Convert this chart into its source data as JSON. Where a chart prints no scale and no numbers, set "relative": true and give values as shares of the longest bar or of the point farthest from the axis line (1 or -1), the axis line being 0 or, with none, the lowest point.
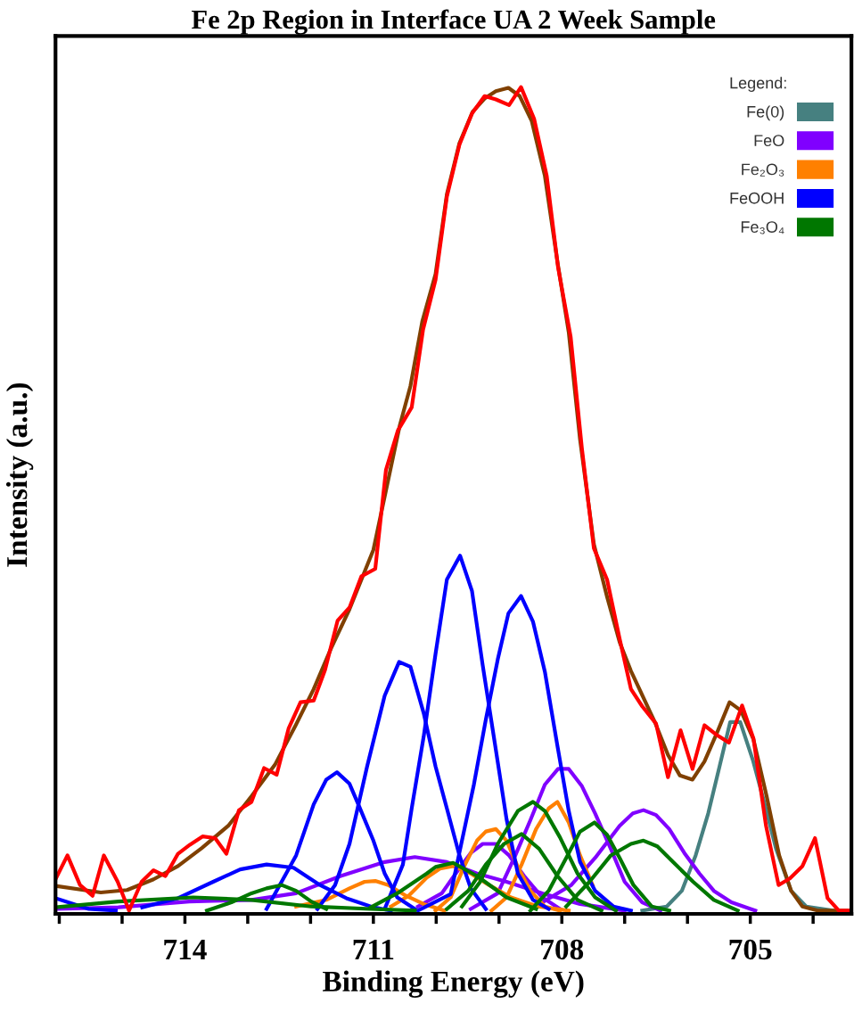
{
  "chart_data": {
    "type": "line",
    "title": "Fe 2p Region in Interface UA 2 Week Sample",
    "xlabel": "Binding Energy (eV)",
    "ylabel": "Intensity (a.u.)",
    "legend_title": "Legend:",
    "relative": true,
    "legend": "top right",
    "grid": false,
    "marker": "none",
    "line_style": "solid",
    "xlim": [
      716.06,
      703.39
    ],
    "xticks": [
      {
        "value": 716,
        "label": null
      },
      {
        "value": 715,
        "label": null
      },
      714,
      {
        "value": 713,
        "label": null
      },
      {
        "value": 712,
        "label": null
      },
      711,
      {
        "value": 710,
        "label": null
      },
      {
        "value": 709,
        "label": null
      },
      708,
      {
        "value": 707,
        "label": null
      },
      {
        "value": 706,
        "label": null
      },
      705,
      {
        "value": 704,
        "label": null
      }
    ],
    "series": [
      {
        "name": "Fe(0)",
        "color": "#468080",
        "x": [
          706.72,
          706.33,
          706.09,
          705.87,
          705.67,
          705.49,
          705.32,
          705.16,
          704.96,
          704.78,
          704.59,
          704.35,
          704.11,
          703.69
        ],
        "values": [
          0,
          0.005,
          0.024,
          0.067,
          0.118,
          0.175,
          0.229,
          0.229,
          0.183,
          0.132,
          0.075,
          0.024,
          0.005,
          0
        ]
      },
      {
        "name": "FeO",
        "color": "#8000ff",
        "x": [
          716.06,
          715.06,
          713.93,
          712.94,
          712.23,
          711.52,
          710.82,
          710.34,
          709.83,
          709.35,
          708.88,
          708.31,
          707.71,
          707.0
        ],
        "values": [
          0.002,
          0.004,
          0.011,
          0.013,
          0.021,
          0.042,
          0.059,
          0.065,
          0.059,
          0.045,
          0.035,
          0.021,
          0.008,
          0
        ]
      },
      {
        "color": "#8000ff",
        "x": [
          710.29,
          709.91,
          709.69,
          709.45,
          709.26,
          709.05,
          708.84,
          708.6,
          708.31,
          708.03
        ],
        "values": [
          0.005,
          0.021,
          0.045,
          0.07,
          0.081,
          0.081,
          0.067,
          0.042,
          0.016,
          0.002
        ]
      },
      {
        "color": "#8000ff",
        "x": [
          709.45,
          709.02,
          708.74,
          708.5,
          708.27,
          708.06,
          707.89,
          707.68,
          707.47,
          707.22,
          707.0,
          706.72,
          706.43
        ],
        "values": [
          0.002,
          0.021,
          0.067,
          0.11,
          0.153,
          0.172,
          0.172,
          0.151,
          0.118,
          0.075,
          0.035,
          0.01,
          0
        ]
      },
      {
        "color": "#8000ff",
        "x": [
          708.31,
          707.85,
          707.47,
          707.08,
          706.87,
          706.7,
          706.5,
          706.29,
          706.05,
          705.81,
          705.58,
          705.3,
          704.92
        ],
        "values": [
          0.01,
          0.031,
          0.064,
          0.103,
          0.118,
          0.122,
          0.116,
          0.099,
          0.07,
          0.045,
          0.024,
          0.01,
          0
        ]
      },
      {
        "name": "Fe₂O₃",
        "color": "#ff8000",
        "x": [
          712.23,
          711.75,
          711.38,
          711.14,
          710.97,
          710.76,
          710.48,
          710.2,
          709.87
        ],
        "values": [
          0.005,
          0.013,
          0.027,
          0.035,
          0.036,
          0.031,
          0.018,
          0.008,
          0
        ]
      },
      {
        "color": "#ff8000",
        "x": [
          710.72,
          710.44,
          710.15,
          709.94,
          709.73,
          709.45,
          709.16,
          708.81,
          708.38,
          707.89
        ],
        "values": [
          0.005,
          0.018,
          0.04,
          0.051,
          0.054,
          0.045,
          0.031,
          0.016,
          0.005,
          0
        ]
      },
      {
        "color": "#ff8000",
        "x": [
          710.01,
          709.77,
          709.54,
          709.35,
          709.21,
          709.05,
          708.88,
          708.7,
          708.5,
          708.27,
          708.03
        ],
        "values": [
          0,
          0.016,
          0.056,
          0.085,
          0.096,
          0.099,
          0.085,
          0.053,
          0.024,
          0.005,
          0
        ]
      },
      {
        "color": "#ff8000",
        "x": [
          709.12,
          708.88,
          708.64,
          708.41,
          708.21,
          708.07,
          707.89,
          707.71,
          707.51
        ],
        "values": [
          0,
          0.016,
          0.056,
          0.099,
          0.124,
          0.132,
          0.107,
          0.067,
          0.031
        ]
      },
      {
        "name": "FeOOH",
        "color": "#0000ff",
        "x": [
          716.06,
          715.53,
          715.1
        ],
        "values": [
          0.015,
          0.002,
          0
        ]
      },
      {
        "color": "#0000ff",
        "x": [
          714.68,
          714.11,
          713.55,
          713.12,
          712.7,
          712.27,
          711.85,
          711.43,
          711.0,
          710.72
        ],
        "values": [
          0.004,
          0.015,
          0.035,
          0.05,
          0.056,
          0.052,
          0.031,
          0.015,
          0.004,
          0
        ]
      },
      {
        "color": "#0000ff",
        "x": [
          712.7,
          712.23,
          711.95,
          711.75,
          711.58,
          711.38,
          711.24,
          711.0,
          710.82,
          710.62,
          710.34
        ],
        "values": [
          0.002,
          0.067,
          0.129,
          0.159,
          0.168,
          0.154,
          0.129,
          0.085,
          0.045,
          0.016,
          0.002
        ]
      },
      {
        "color": "#0000ff",
        "x": [
          711.89,
          711.61,
          711.38,
          711.1,
          710.82,
          710.59,
          710.41,
          710.2,
          710.01,
          709.83,
          709.63,
          709.45,
          709.21
        ],
        "values": [
          0.002,
          0.031,
          0.081,
          0.175,
          0.261,
          0.302,
          0.296,
          0.24,
          0.175,
          0.124,
          0.067,
          0.027,
          0.002
        ]
      },
      {
        "color": "#0000ff",
        "x": [
          710.82,
          710.53,
          710.39,
          710.2,
          710.01,
          709.83,
          709.62,
          709.43,
          709.26,
          709.06,
          708.88,
          708.7,
          708.46,
          708.21
        ],
        "values": [
          0.002,
          0.056,
          0.124,
          0.211,
          0.312,
          0.402,
          0.431,
          0.388,
          0.298,
          0.2,
          0.111,
          0.045,
          0.013,
          0.002
        ]
      },
      {
        "color": "#0000ff",
        "x": [
          710.29,
          709.77,
          709.59,
          709.4,
          709.21,
          709.02,
          708.85,
          708.65,
          708.46,
          708.27,
          708.07,
          707.89,
          707.71,
          707.47,
          707.18,
          706.9
        ],
        "values": [
          0,
          0.02,
          0.085,
          0.153,
          0.232,
          0.305,
          0.361,
          0.382,
          0.351,
          0.29,
          0.2,
          0.121,
          0.059,
          0.024,
          0.005,
          0
        ]
      },
      {
        "name": "Fe₃O₄",
        "color": "#007700",
        "x": [
          716.06,
          715.06,
          713.87,
          712.94,
          711.99,
          711.04,
          710.34
        ],
        "values": [
          0.004,
          0.011,
          0.016,
          0.013,
          0.005,
          0.002,
          0
        ]
      },
      {
        "color": "#007700",
        "x": [
          713.65,
          713.26,
          712.94,
          712.7,
          712.46,
          712.23,
          711.99,
          711.75
        ],
        "values": [
          0,
          0.01,
          0.021,
          0.027,
          0.031,
          0.024,
          0.011,
          0.002
        ]
      },
      {
        "color": "#007700",
        "x": [
          711.04,
          710.62,
          710.15,
          710.01,
          709.73,
          709.35,
          708.88,
          708.41
        ],
        "values": [
          0.004,
          0.021,
          0.045,
          0.053,
          0.058,
          0.042,
          0.016,
          0.002
        ]
      },
      {
        "color": "#007700",
        "x": [
          709.83,
          709.49,
          709.21,
          708.92,
          708.64,
          708.36,
          708.07,
          707.75,
          707.37
        ],
        "values": [
          0.002,
          0.024,
          0.056,
          0.081,
          0.093,
          0.075,
          0.042,
          0.013,
          0
        ]
      },
      {
        "color": "#007700",
        "x": [
          709.59,
          709.3,
          709.02,
          708.7,
          708.46,
          708.27,
          708.03,
          707.75,
          707.47,
          707.14
        ],
        "values": [
          0.005,
          0.035,
          0.081,
          0.121,
          0.132,
          0.121,
          0.089,
          0.045,
          0.016,
          0
        ]
      },
      {
        "color": "#007700",
        "x": [
          708.5,
          708.21,
          707.93,
          707.71,
          707.48,
          707.28,
          707.08,
          706.86,
          706.57,
          706.29
        ],
        "values": [
          0,
          0.024,
          0.064,
          0.096,
          0.107,
          0.092,
          0.064,
          0.031,
          0.005,
          0
        ]
      },
      {
        "color": "#007700",
        "x": [
          707.93,
          707.56,
          707.22,
          706.9,
          706.7,
          706.48,
          706.23,
          705.91,
          705.58,
          705.2
        ],
        "values": [
          0.005,
          0.035,
          0.067,
          0.081,
          0.085,
          0.078,
          0.059,
          0.035,
          0.013,
          0
        ]
      },
      {
        "color": "#804000",
        "x": [
          716.06,
          715.34,
          714.92,
          714.5,
          714.11,
          713.73,
          713.31,
          712.94,
          712.56,
          712.23,
          711.95,
          711.67,
          711.38,
          711.0,
          710.58,
          710.41,
          710.22,
          710.01,
          709.83,
          709.63,
          709.42,
          709.23,
          709.05,
          708.85,
          708.67,
          708.48,
          708.27,
          708.07,
          707.89,
          707.71,
          707.49,
          707.28,
          707.08,
          706.9,
          706.52,
          706.31,
          706.12,
          705.92,
          705.73,
          705.53,
          705.33,
          705.15,
          704.95,
          704.74,
          704.54,
          704.35,
          704.17,
          703.93,
          703.39
        ],
        "values": [
          0.03,
          0.022,
          0.025,
          0.038,
          0.054,
          0.076,
          0.103,
          0.139,
          0.178,
          0.226,
          0.269,
          0.319,
          0.366,
          0.438,
          0.589,
          0.637,
          0.716,
          0.773,
          0.87,
          0.932,
          0.97,
          0.986,
          0.995,
          0.999,
          0.989,
          0.959,
          0.892,
          0.788,
          0.702,
          0.572,
          0.445,
          0.381,
          0.326,
          0.291,
          0.229,
          0.189,
          0.164,
          0.159,
          0.181,
          0.216,
          0.253,
          0.243,
          0.208,
          0.139,
          0.067,
          0.024,
          0.005,
          0,
          0
        ]
      },
      {
        "color": "#ff0000",
        "x": [
          716.06,
          715.87,
          715.67,
          715.47,
          715.29,
          715.07,
          714.89,
          714.69,
          714.5,
          714.31,
          714.11,
          713.92,
          713.72,
          713.52,
          713.34,
          713.14,
          712.94,
          712.74,
          712.54,
          712.35,
          712.16,
          711.95,
          711.77,
          711.57,
          711.38,
          711.19,
          710.97,
          710.8,
          710.61,
          710.39,
          710.21,
          710.01,
          709.83,
          709.63,
          709.43,
          709.23,
          709.05,
          708.84,
          708.65,
          708.44,
          708.24,
          708.06,
          707.86,
          707.68,
          707.49,
          707.28,
          707.08,
          706.9,
          706.72,
          706.5,
          706.31,
          706.11,
          705.92,
          705.73,
          705.53,
          705.34,
          705.13,
          704.95,
          704.75,
          704.55,
          704.37,
          704.17,
          703.97,
          703.77,
          703.59,
          703.39
        ],
        "values": [
          0.038,
          0.067,
          0.031,
          0.018,
          0.067,
          0.035,
          0,
          0.035,
          0.049,
          0.042,
          0.069,
          0.08,
          0.09,
          0.088,
          0.069,
          0.122,
          0.132,
          0.173,
          0.165,
          0.221,
          0.253,
          0.255,
          0.292,
          0.352,
          0.368,
          0.406,
          0.415,
          0.535,
          0.583,
          0.611,
          0.705,
          0.766,
          0.867,
          0.93,
          0.968,
          0.989,
          0.985,
          0.978,
          1,
          0.961,
          0.892,
          0.781,
          0.697,
          0.561,
          0.44,
          0.402,
          0.33,
          0.269,
          0.248,
          0.227,
          0.162,
          0.219,
          0.172,
          0.225,
          0.213,
          0.204,
          0.249,
          0.209,
          0.103,
          0.031,
          0.039,
          0.054,
          0.088,
          0.015,
          0,
          0
        ]
      }
    ]
  }
}
